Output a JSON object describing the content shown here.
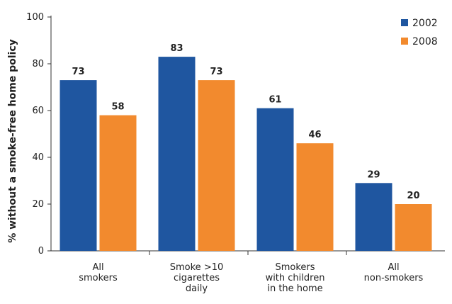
{
  "chart_data": {
    "type": "bar",
    "title": "",
    "xlabel": "",
    "ylabel": "% without a smoke-free home policy",
    "ylim": [
      0,
      100
    ],
    "yticks": [
      0,
      20,
      40,
      60,
      80,
      100
    ],
    "categories": [
      [
        "All",
        "smokers"
      ],
      [
        "Smoke >10",
        "cigarettes",
        "daily"
      ],
      [
        "Smokers",
        "with children",
        "in the home"
      ],
      [
        "All",
        "non-smokers"
      ]
    ],
    "series": [
      {
        "name": "2002",
        "color": "#1f56a0",
        "values": [
          73,
          83,
          61,
          29
        ]
      },
      {
        "name": "2008",
        "color": "#f28a2e",
        "values": [
          58,
          73,
          46,
          20
        ]
      }
    ],
    "legend_position": "top-right",
    "grid": false
  }
}
